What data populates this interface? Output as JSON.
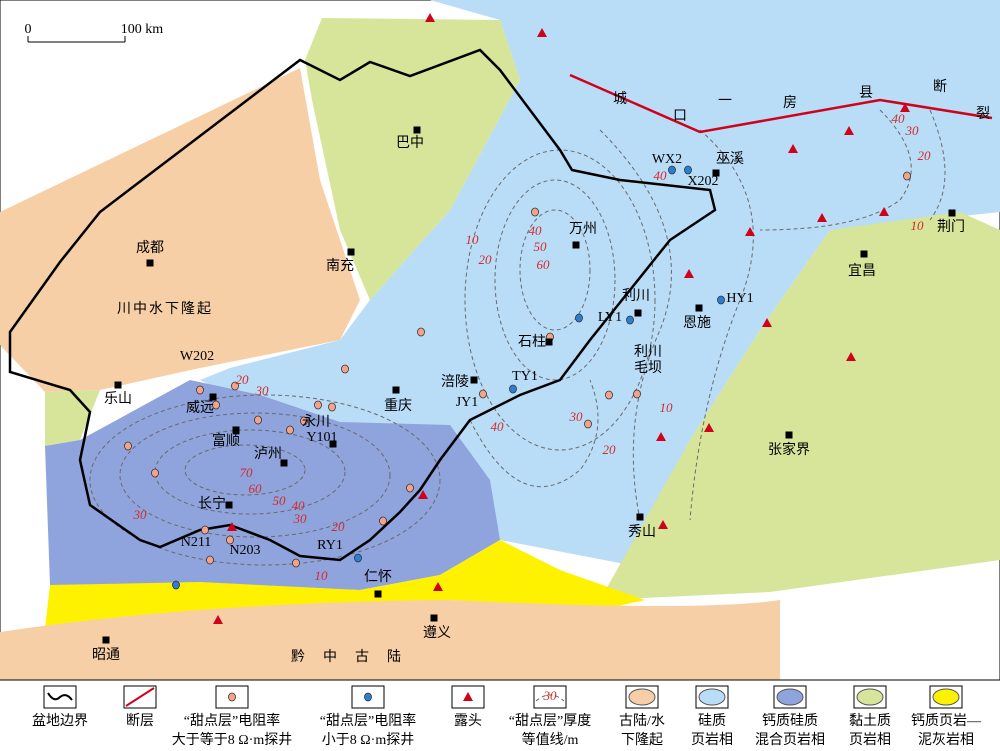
{
  "scale_bar": {
    "start": "0",
    "end": "100 km"
  },
  "fault_label": [
    "城",
    "口",
    "一",
    "房",
    "县",
    "断",
    "裂"
  ],
  "region_labels": [
    "川中水下隆起",
    "黔中古陆"
  ],
  "cities": [
    "巴中",
    "成都",
    "南充",
    "万州",
    "利川",
    "恩施",
    "巫溪",
    "荆门",
    "宜昌",
    "石柱",
    "乐山",
    "威远",
    "富顺",
    "泸州",
    "永川",
    "重庆",
    "涪陵",
    "长宁",
    "仁怀",
    "遵义",
    "昭通",
    "秀山",
    "张家界"
  ],
  "place_labels": [
    "利川",
    "毛坝"
  ],
  "wells": [
    "W202",
    "Y101",
    "JY1",
    "TY1",
    "LY1",
    "HY1",
    "WX2",
    "X202",
    "N211",
    "N203",
    "RY1"
  ],
  "contour_labels": [
    40,
    40,
    30,
    20,
    10,
    10,
    20,
    40,
    50,
    60,
    30,
    20,
    10,
    40,
    20,
    30,
    70,
    60,
    50,
    40,
    30,
    20,
    10,
    30
  ],
  "legend": [
    {
      "lines": [
        "盆地边界"
      ]
    },
    {
      "lines": [
        "断层"
      ]
    },
    {
      "lines": [
        "“甜点层”电阻率",
        "大于等于8 Ω·m探井"
      ]
    },
    {
      "lines": [
        "“甜点层”电阻率",
        "小于8 Ω·m探井"
      ]
    },
    {
      "lines": [
        "露头"
      ]
    },
    {
      "lines": [
        "“甜点层”厚度",
        "等值线/m"
      ],
      "sample": 30
    },
    {
      "lines": [
        "古陆/水",
        "下隆起"
      ]
    },
    {
      "lines": [
        "硅质",
        "页岩相"
      ]
    },
    {
      "lines": [
        "钙质硅质",
        "混合页岩相"
      ]
    },
    {
      "lines": [
        "黏土质",
        "页岩相"
      ]
    },
    {
      "lines": [
        "钙质页岩—",
        "泥灰岩相"
      ]
    }
  ]
}
